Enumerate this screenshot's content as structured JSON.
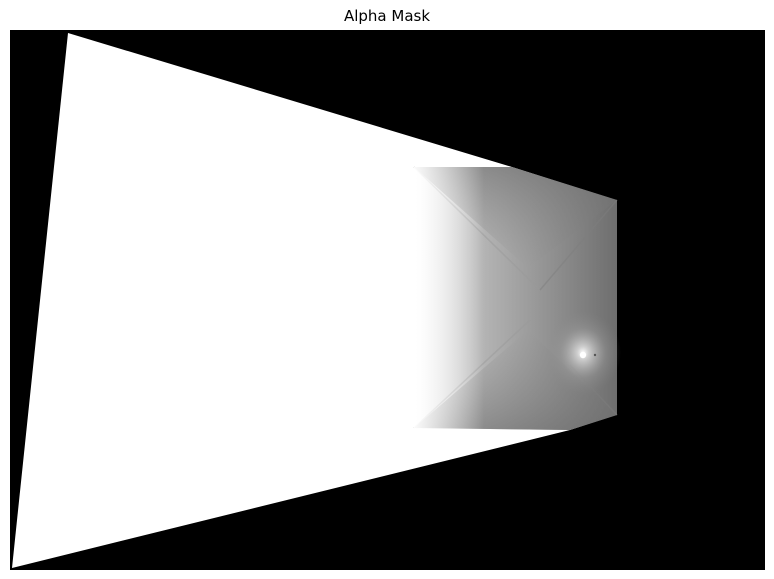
{
  "figure": {
    "title": "Alpha Mask"
  },
  "mask": {
    "background_color": "#000000",
    "foreground_color": "#ffffff",
    "mid_gray_color": "#8a8a8a"
  }
}
